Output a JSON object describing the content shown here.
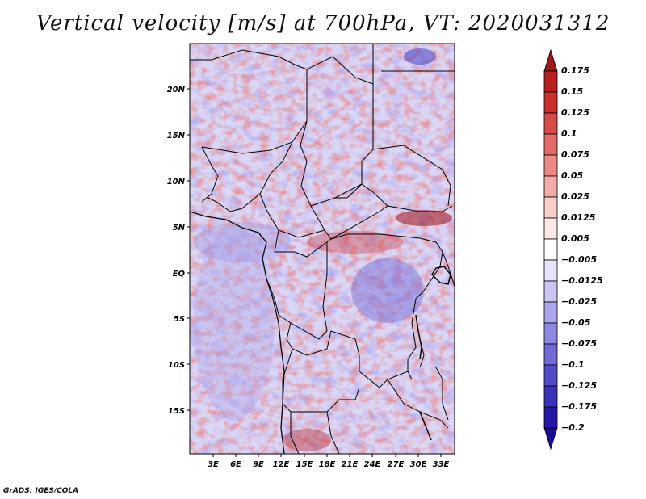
{
  "title": "Vertical velocity [m/s] at 700hPa, VT: 2020031312",
  "credit": "GrADS: IGES/COLA",
  "map": {
    "lat_labels": [
      "20N",
      "15N",
      "10N",
      "5N",
      "EQ",
      "5S",
      "10S",
      "15S"
    ],
    "lon_labels": [
      "3E",
      "6E",
      "9E",
      "12E",
      "15E",
      "18E",
      "21E",
      "24E",
      "27E",
      "30E",
      "33E"
    ]
  },
  "colorbar": {
    "levels": [
      "0.175",
      "0.15",
      "0.125",
      "0.1",
      "0.075",
      "0.05",
      "0.025",
      "0.0125",
      "0.005",
      "−0.005",
      "−0.0125",
      "−0.025",
      "−0.05",
      "−0.075",
      "−0.1",
      "−0.125",
      "−0.175",
      "−0.2"
    ],
    "colors": [
      "#a01418",
      "#b81e22",
      "#cc2f2f",
      "#da4a48",
      "#e36a66",
      "#ec8b86",
      "#f3ada8",
      "#f8cdca",
      "#fce8e6",
      "#ffffff",
      "#e6e4fb",
      "#c9c5f4",
      "#aca6ec",
      "#8f88e3",
      "#7069d8",
      "#534bcb",
      "#3a31bc",
      "#2518a8",
      "#1c0c96"
    ]
  }
}
